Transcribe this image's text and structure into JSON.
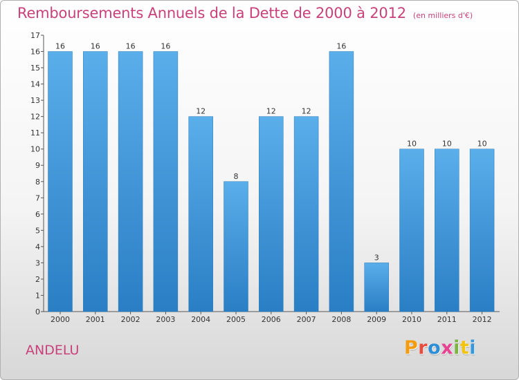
{
  "header": {
    "title": "Remboursements Annuels de la Dette de 2000 à 2012",
    "unit": "(en milliers d'€)"
  },
  "footer": {
    "city": "ANDELU",
    "brand": "Proxiti",
    "brand_colors": [
      "#f39c12",
      "#e74c3c",
      "#2e8fd6",
      "#e84393",
      "#7cb342",
      "#f1c40f",
      "#3498db"
    ]
  },
  "colors": {
    "title": "#c8417a",
    "bar_top": "#5aaeea",
    "bar_bottom": "#2a7ec4"
  },
  "chart_data": {
    "type": "bar",
    "categories": [
      "2000",
      "2001",
      "2002",
      "2003",
      "2004",
      "2005",
      "2006",
      "2007",
      "2008",
      "2009",
      "2010",
      "2011",
      "2012"
    ],
    "values": [
      16,
      16,
      16,
      16,
      12,
      8,
      12,
      12,
      16,
      3,
      10,
      10,
      10
    ],
    "title": "Remboursements Annuels de la Dette de 2000 à 2012",
    "xlabel": "",
    "ylabel": "",
    "ylim": [
      0,
      17
    ],
    "yticks": [
      0,
      1,
      2,
      3,
      4,
      5,
      6,
      7,
      8,
      9,
      10,
      11,
      12,
      13,
      14,
      15,
      16,
      17
    ],
    "grid": false,
    "legend": "none"
  }
}
